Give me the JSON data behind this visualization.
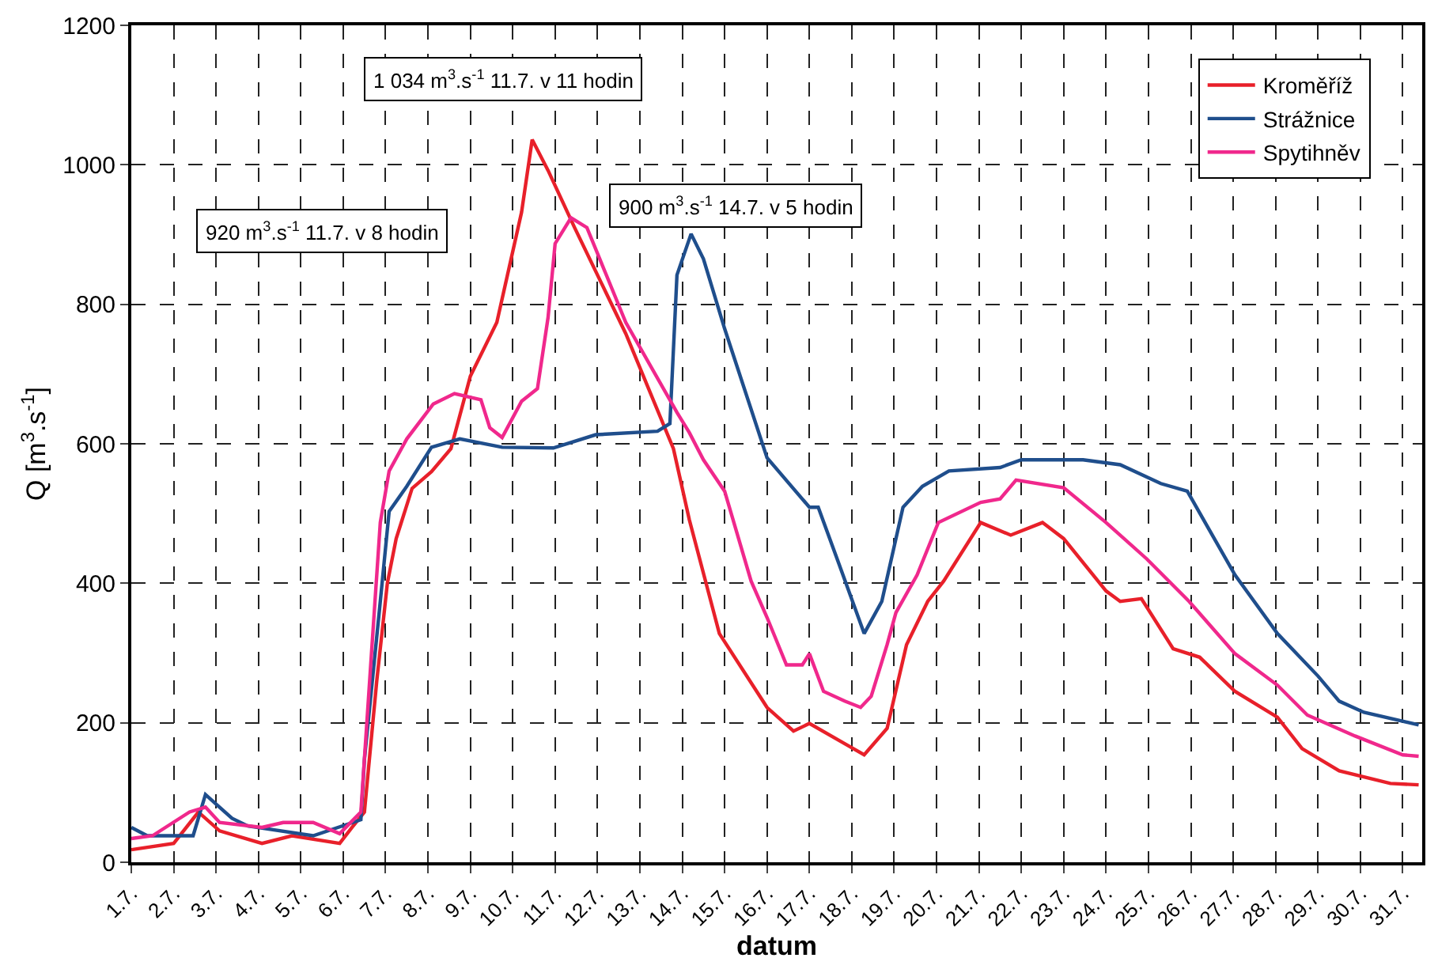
{
  "chart_data": {
    "type": "line",
    "xlabel": "datum",
    "ylabel": "Q [m$^{3}$.s$^{-1}$]",
    "xlim": [
      "--07-01",
      "--07-31T11:00"
    ],
    "ylim": [
      0,
      1200
    ],
    "yticks": [
      0,
      200,
      400,
      600,
      800,
      1000,
      1200
    ],
    "xticks": [
      {
        "value": "--07-01",
        "label": "1.7."
      },
      {
        "value": "--07-02",
        "label": "2.7."
      },
      {
        "value": "--07-03",
        "label": "3.7."
      },
      {
        "value": "--07-04",
        "label": "4.7."
      },
      {
        "value": "--07-05",
        "label": "5.7."
      },
      {
        "value": "--07-06",
        "label": "6.7."
      },
      {
        "value": "--07-07",
        "label": "7.7."
      },
      {
        "value": "--07-08",
        "label": "8.7."
      },
      {
        "value": "--07-09",
        "label": "9.7."
      },
      {
        "value": "--07-10",
        "label": "10.7."
      },
      {
        "value": "--07-11",
        "label": "11.7."
      },
      {
        "value": "--07-12",
        "label": "12.7."
      },
      {
        "value": "--07-13",
        "label": "13.7."
      },
      {
        "value": "--07-14",
        "label": "14.7."
      },
      {
        "value": "--07-15",
        "label": "15.7."
      },
      {
        "value": "--07-16",
        "label": "16.7."
      },
      {
        "value": "--07-17",
        "label": "17.7."
      },
      {
        "value": "--07-18",
        "label": "18.7."
      },
      {
        "value": "--07-19",
        "label": "19.7."
      },
      {
        "value": "--07-20",
        "label": "20.7."
      },
      {
        "value": "--07-21",
        "label": "21.7."
      },
      {
        "value": "--07-22",
        "label": "22.7."
      },
      {
        "value": "--07-23",
        "label": "23.7."
      },
      {
        "value": "--07-24",
        "label": "24.7."
      },
      {
        "value": "--07-25",
        "label": "25.7."
      },
      {
        "value": "--07-26",
        "label": "26.7."
      },
      {
        "value": "--07-27",
        "label": "27.7."
      },
      {
        "value": "--07-28",
        "label": "28.7."
      },
      {
        "value": "--07-29",
        "label": "29.7."
      },
      {
        "value": "--07-30",
        "label": "30.7."
      },
      {
        "value": "--07-31",
        "label": "31.7."
      }
    ],
    "grid": true,
    "legend": "top right",
    "marker": "none",
    "line_style": "solid",
    "annotations": [
      "920 m$^{3}$.s$^{-1}$ 11.7. v 8 hodin",
      "1 034 m$^{3}$.s$^{-1}$ 11.7. v 11 hodin",
      "900 m$^{3}$.s$^{-1}$ 14.7. v 5 hodin"
    ],
    "series": [
      {
        "name": "Kroměříž",
        "color": "#e8202a",
        "x": [
          "--07-01T00:00",
          "--07-02T00:00",
          "--07-02T14:00",
          "--07-03T02:00",
          "--07-04T02:00",
          "--07-04T19:00",
          "--07-05T22:00",
          "--07-06T05:00",
          "--07-06T12:00",
          "--07-06T19:00",
          "--07-07T01:00",
          "--07-07T06:00",
          "--07-07T15:00",
          "--07-08T02:00",
          "--07-08T13:00",
          "--07-09T00:00",
          "--07-09T15:00",
          "--07-10T05:00",
          "--07-10T11:00",
          "--07-10T20:00",
          "--07-11T11:00",
          "--07-12T16:00",
          "--07-13T19:00",
          "--07-14T04:00",
          "--07-14T21:00",
          "--07-16T00:00",
          "--07-16T15:00",
          "--07-17T00:00",
          "--07-17T20:00",
          "--07-18T07:00",
          "--07-18T20:00",
          "--07-19T07:00",
          "--07-19T19:00",
          "--07-20T04:00",
          "--07-21T01:00",
          "--07-21T18:00",
          "--07-22T12:00",
          "--07-23T00:00",
          "--07-24T00:00",
          "--07-24T08:00",
          "--07-24T20:00",
          "--07-25T14:00",
          "--07-26T05:00",
          "--07-27T01:00",
          "--07-28T01:00",
          "--07-28T15:00",
          "--07-29T12:00",
          "--07-30T17:00",
          "--07-31T09:00"
        ],
        "values": [
          18,
          27,
          72,
          45,
          27,
          38,
          27,
          50,
          72,
          260,
          400,
          464,
          536,
          560,
          593,
          697,
          774,
          932,
          1036,
          992,
          910,
          758,
          593,
          491,
          328,
          222,
          188,
          199,
          170,
          154,
          192,
          312,
          374,
          403,
          487,
          469,
          487,
          464,
          389,
          374,
          378,
          306,
          294,
          245,
          208,
          163,
          131,
          113,
          111
        ]
      },
      {
        "name": "Strážnice",
        "color": "#1f4e8c",
        "x": [
          "--07-01T00:00",
          "--07-01T09:00",
          "--07-02T11:00",
          "--07-02T18:00",
          "--07-03T09:00",
          "--07-03T18:00",
          "--07-05T07:00",
          "--07-06T10:00",
          "--07-06T12:00",
          "--07-06T21:00",
          "--07-07T02:00",
          "--07-07T12:00",
          "--07-08T02:00",
          "--07-08T18:00",
          "--07-09T18:00",
          "--07-10T23:00",
          "--07-11T23:00",
          "--07-13T10:00",
          "--07-13T17:00",
          "--07-13T21:00",
          "--07-14T05:00",
          "--07-14T12:00",
          "--07-15T00:00",
          "--07-16T00:00",
          "--07-17T00:00",
          "--07-17T05:00",
          "--07-17T17:00",
          "--07-18T07:00",
          "--07-18T17:00",
          "--07-19T05:00",
          "--07-19T16:00",
          "--07-20T07:00",
          "--07-21T12:00",
          "--07-22T00:00",
          "--07-23T11:00",
          "--07-24T08:00",
          "--07-25T07:00",
          "--07-25T22:00",
          "--07-27T01:00",
          "--07-28T01:00",
          "--07-29T00:00",
          "--07-29T12:00",
          "--07-30T02:00",
          "--07-31T09:00"
        ],
        "values": [
          50,
          38,
          38,
          97,
          63,
          52,
          38,
          61,
          147,
          374,
          503,
          539,
          595,
          607,
          595,
          594,
          613,
          618,
          629,
          842,
          901,
          865,
          765,
          580,
          509,
          509,
          426,
          328,
          374,
          509,
          539,
          561,
          566,
          577,
          577,
          570,
          543,
          532,
          412,
          328,
          267,
          231,
          215,
          197
        ]
      },
      {
        "name": "Spytihněv",
        "color": "#f0288c",
        "x": [
          "--07-01T00:00",
          "--07-01T12:00",
          "--07-02T09:00",
          "--07-02T18:00",
          "--07-03T02:00",
          "--07-04T02:00",
          "--07-04T14:00",
          "--07-05T07:00",
          "--07-05T22:00",
          "--07-06T10:00",
          "--07-06T16:00",
          "--07-06T21:00",
          "--07-07T02:00",
          "--07-07T12:00",
          "--07-08T03:00",
          "--07-08T15:00",
          "--07-09T06:00",
          "--07-09T11:00",
          "--07-09T18:00",
          "--07-10T05:00",
          "--07-10T14:00",
          "--07-10T20:00",
          "--07-11T00:00",
          "--07-11T09:00",
          "--07-11T18:00",
          "--07-12T16:00",
          "--07-13T21:00",
          "--07-14T04:00",
          "--07-14T12:00",
          "--07-15T00:00",
          "--07-15T15:00",
          "--07-16T00:00",
          "--07-16T11:00",
          "--07-16T20:00",
          "--07-17T00:00",
          "--07-17T08:00",
          "--07-17T20:00",
          "--07-18T05:00",
          "--07-18T11:00",
          "--07-18T20:00",
          "--07-19T01:00",
          "--07-19T13:00",
          "--07-20T01:00",
          "--07-21T01:00",
          "--07-21T12:00",
          "--07-21T21:00",
          "--07-23T00:00",
          "--07-24T00:00",
          "--07-24T23:00",
          "--07-25T23:00",
          "--07-27T01:00",
          "--07-28T01:00",
          "--07-28T18:00",
          "--07-29T21:00",
          "--07-31T00:00",
          "--07-31T09:00"
        ],
        "values": [
          34,
          38,
          72,
          79,
          57,
          50,
          57,
          57,
          41,
          72,
          299,
          487,
          561,
          607,
          657,
          672,
          663,
          623,
          609,
          661,
          679,
          781,
          887,
          924,
          910,
          774,
          645,
          616,
          577,
          532,
          403,
          351,
          283,
          283,
          299,
          245,
          231,
          222,
          238,
          312,
          358,
          412,
          487,
          516,
          521,
          548,
          537,
          487,
          435,
          374,
          299,
          254,
          211,
          181,
          154,
          152
        ]
      }
    ]
  }
}
